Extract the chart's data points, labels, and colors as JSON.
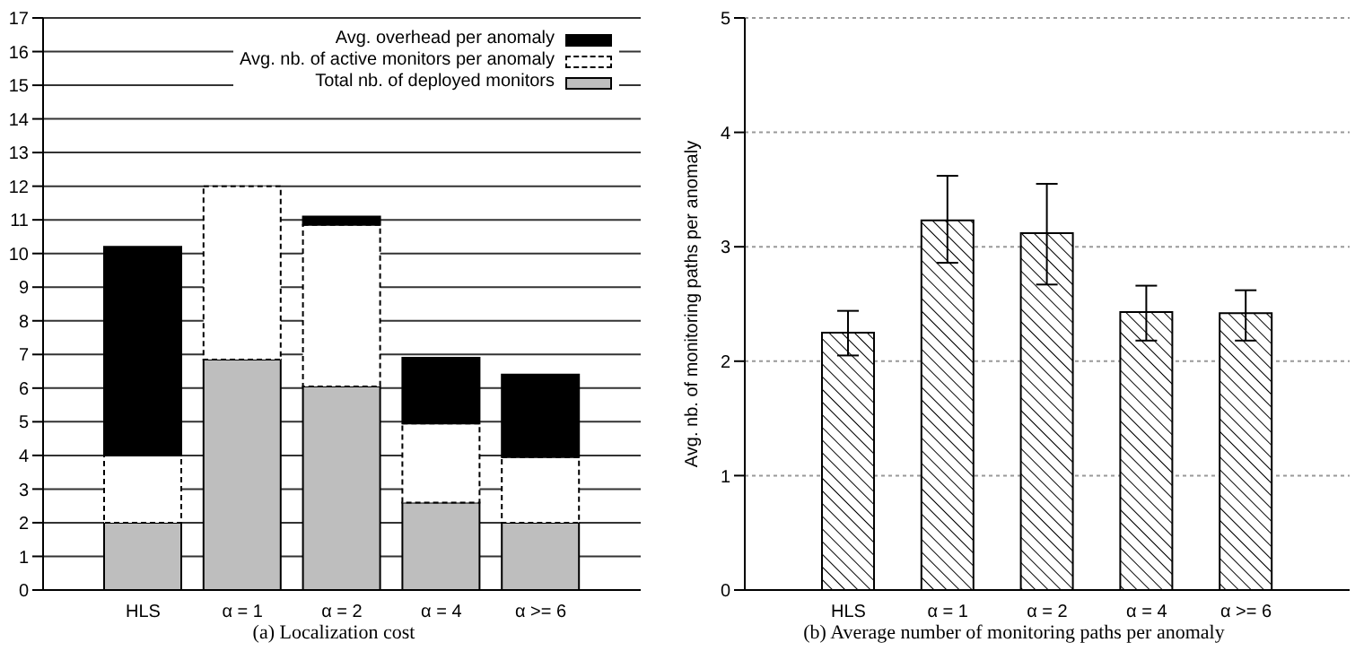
{
  "chart_data": [
    {
      "type": "bar",
      "stacked": true,
      "categories": [
        "HLS",
        "α = 1",
        "α = 2",
        "α = 4",
        "α >= 6"
      ],
      "series": [
        {
          "name": "Total nb. of deployed monitors",
          "color": "#bebebe",
          "values": [
            2,
            6.85,
            6.05,
            2.6,
            2
          ]
        },
        {
          "name": "Avg. nb. of active monitors per anomaly",
          "color": "#ffffff",
          "line_style": "dashed",
          "values": [
            2,
            5.15,
            4.8,
            2.35,
            1.95
          ]
        },
        {
          "name": "Avg. overhead per anomaly",
          "color": "#000000",
          "values": [
            6.2,
            0,
            0.25,
            1.95,
            2.45
          ]
        }
      ],
      "ylim": [
        0,
        17
      ],
      "yticks": [
        0,
        1,
        2,
        3,
        4,
        5,
        6,
        7,
        8,
        9,
        10,
        11,
        12,
        13,
        14,
        15,
        16,
        17
      ],
      "grid": "y",
      "legend": "top right",
      "annotations": [
        "(a) Localization cost"
      ]
    },
    {
      "type": "bar",
      "categories": [
        "HLS",
        "α = 1",
        "α = 2",
        "α = 4",
        "α >= 6"
      ],
      "series": [
        {
          "color": "#000000",
          "values": [
            2.25,
            3.23,
            3.12,
            2.43,
            2.42
          ],
          "errors": [
            [
              2.05,
              2.44
            ],
            [
              2.86,
              3.62
            ],
            [
              2.67,
              3.55
            ],
            [
              2.18,
              2.66
            ],
            [
              2.18,
              2.62
            ]
          ]
        }
      ],
      "ylabel": "Avg. nb. of monitoring paths per anomaly",
      "ylim": [
        0,
        5
      ],
      "yticks": [
        0,
        1,
        2,
        3,
        4,
        5
      ],
      "grid": "y",
      "annotations": [
        "(b) Average number of monitoring paths per anomaly"
      ]
    }
  ]
}
